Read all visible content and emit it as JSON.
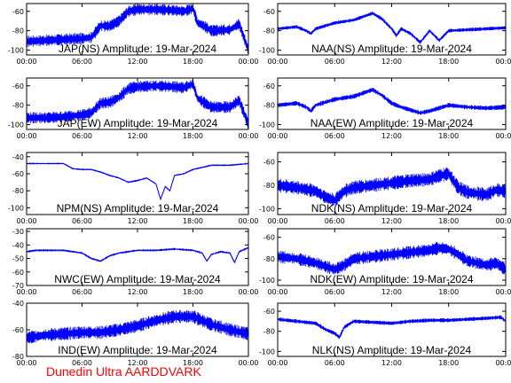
{
  "colors": {
    "trace": "#0000ff",
    "frame": "#000000",
    "footer": "#ff0000",
    "background": "#ffffff"
  },
  "footer": {
    "text": "Dunedin Ultra AARDDVARK"
  },
  "chart_data": [
    {
      "type": "line",
      "title": "JAP(NS) Amplitude: 19-Mar-2024",
      "xlim": [
        0,
        24
      ],
      "xticks": [
        "00:00",
        "06:00",
        "12:00",
        "18:00",
        "00:00"
      ],
      "ylim": [
        -105,
        -52
      ],
      "yticks": [
        -100,
        -80,
        -60
      ],
      "series": [
        {
          "x": [
            0,
            2,
            4,
            6,
            7,
            8,
            9,
            10,
            11,
            12,
            14,
            16,
            17,
            18,
            18.5,
            19,
            20,
            22,
            23,
            24
          ],
          "y": [
            -91,
            -90,
            -89,
            -88,
            -87,
            -75,
            -75,
            -70,
            -60,
            -58,
            -58,
            -59,
            -60,
            -57,
            -72,
            -74,
            -80,
            -79,
            -73,
            -100
          ],
          "band": 6
        }
      ]
    },
    {
      "type": "line",
      "title": "NAA(NS) Amplitude: 19-Mar-2024",
      "xlim": [
        0,
        24
      ],
      "xticks": [
        "00:00",
        "06:00",
        "12:00",
        "18:00",
        "00:00"
      ],
      "ylim": [
        -105,
        -52
      ],
      "yticks": [
        -100,
        -80,
        -60
      ],
      "series": [
        {
          "x": [
            0,
            2,
            3,
            3.5,
            4,
            6,
            8,
            10,
            11,
            12,
            12.5,
            13,
            14,
            15,
            16,
            17,
            18,
            20,
            22,
            24
          ],
          "y": [
            -78,
            -76,
            -80,
            -83,
            -78,
            -72,
            -69,
            -62,
            -68,
            -78,
            -85,
            -78,
            -83,
            -92,
            -80,
            -90,
            -80,
            -79,
            -78,
            -77
          ],
          "band": 2
        }
      ]
    },
    {
      "type": "line",
      "title": "JAP(EW) Amplitude: 19-Mar-2024",
      "xlim": [
        0,
        24
      ],
      "xticks": [
        "00:00",
        "06:00",
        "12:00",
        "18:00",
        "00:00"
      ],
      "ylim": [
        -105,
        -52
      ],
      "yticks": [
        -100,
        -80,
        -60
      ],
      "series": [
        {
          "x": [
            0,
            2,
            4,
            6,
            7,
            8,
            9,
            10,
            11,
            12,
            14,
            16,
            17,
            18,
            18.5,
            19,
            20,
            22,
            23,
            24
          ],
          "y": [
            -93,
            -93,
            -92,
            -90,
            -88,
            -78,
            -77,
            -72,
            -63,
            -61,
            -60,
            -61,
            -62,
            -58,
            -73,
            -76,
            -82,
            -82,
            -75,
            -100
          ],
          "band": 6
        }
      ]
    },
    {
      "type": "line",
      "title": "NAA(EW) Amplitude: 19-Mar-2024",
      "xlim": [
        0,
        24
      ],
      "xticks": [
        "00:00",
        "06:00",
        "12:00",
        "18:00",
        "00:00"
      ],
      "ylim": [
        -105,
        -52
      ],
      "yticks": [
        -100,
        -80,
        -60
      ],
      "series": [
        {
          "x": [
            0,
            2,
            3,
            3.5,
            4,
            6,
            8,
            10,
            11,
            12,
            13,
            14,
            15,
            16,
            18,
            20,
            22,
            24
          ],
          "y": [
            -80,
            -78,
            -82,
            -86,
            -80,
            -74,
            -71,
            -64,
            -70,
            -78,
            -82,
            -85,
            -88,
            -86,
            -80,
            -82,
            -83,
            -82
          ],
          "band": 2.5
        }
      ]
    },
    {
      "type": "line",
      "title": "NPM(NS) Amplitude: 19-Mar-2024",
      "xlim": [
        0,
        24
      ],
      "xticks": [
        "00:00",
        "06:00",
        "12:00",
        "18:00",
        "00:00"
      ],
      "ylim": [
        -108,
        -35
      ],
      "yticks": [
        -100,
        -80,
        -60,
        -40
      ],
      "series": [
        {
          "x": [
            0,
            2,
            4,
            5,
            6,
            7,
            8,
            9,
            10,
            11,
            12,
            13,
            14,
            14.5,
            15,
            15.5,
            16,
            17,
            18,
            20,
            22,
            24
          ],
          "y": [
            -48,
            -48,
            -48,
            -54,
            -55,
            -55,
            -58,
            -62,
            -65,
            -70,
            -68,
            -65,
            -72,
            -90,
            -75,
            -80,
            -62,
            -60,
            -55,
            -50,
            -50,
            -48
          ],
          "band": 1
        }
      ]
    },
    {
      "type": "line",
      "title": "NDK(NS) Amplitude: 19-Mar-2024",
      "xlim": [
        0,
        24
      ],
      "xticks": [
        "00:00",
        "06:00",
        "12:00",
        "18:00",
        "00:00"
      ],
      "ylim": [
        -105,
        -52
      ],
      "yticks": [
        -100,
        -80,
        -60
      ],
      "series": [
        {
          "x": [
            0,
            2,
            4,
            5,
            6,
            7,
            8,
            10,
            12,
            14,
            16,
            17,
            18,
            18.5,
            19,
            20,
            22,
            23,
            24
          ],
          "y": [
            -80,
            -82,
            -85,
            -90,
            -93,
            -85,
            -82,
            -80,
            -78,
            -76,
            -75,
            -72,
            -70,
            -76,
            -82,
            -86,
            -88,
            -84,
            -85
          ],
          "band": 6
        }
      ]
    },
    {
      "type": "line",
      "title": "NWC(EW) Amplitude: 19-Mar-2024",
      "xlim": [
        0,
        24
      ],
      "xticks": [
        "00:00",
        "06:00",
        "12:00",
        "18:00",
        "00:00"
      ],
      "ylim": [
        -70,
        -28
      ],
      "yticks": [
        -70,
        -60,
        -50,
        -40,
        -30
      ],
      "series": [
        {
          "x": [
            0,
            1,
            2,
            4,
            6,
            7,
            8,
            9,
            10,
            12,
            14,
            16,
            18,
            19,
            19.5,
            20,
            21,
            22,
            22.5,
            23,
            24
          ],
          "y": [
            -45,
            -44,
            -44,
            -44,
            -46,
            -50,
            -52,
            -48,
            -46,
            -44,
            -44,
            -43,
            -44,
            -46,
            -52,
            -47,
            -45,
            -46,
            -53,
            -45,
            -42
          ],
          "band": 0.8
        }
      ]
    },
    {
      "type": "line",
      "title": "NDK(EW) Amplitude: 19-Mar-2024",
      "xlim": [
        0,
        24
      ],
      "xticks": [
        "00:00",
        "06:00",
        "12:00",
        "18:00",
        "00:00"
      ],
      "ylim": [
        -105,
        -52
      ],
      "yticks": [
        -100,
        -80,
        -60
      ],
      "series": [
        {
          "x": [
            0,
            2,
            4,
            6,
            7,
            8,
            10,
            12,
            14,
            16,
            17,
            18,
            19,
            20,
            22,
            23,
            24
          ],
          "y": [
            -78,
            -80,
            -84,
            -90,
            -86,
            -80,
            -78,
            -76,
            -74,
            -72,
            -70,
            -71,
            -76,
            -82,
            -86,
            -84,
            -90
          ],
          "band": 6
        }
      ]
    },
    {
      "type": "line",
      "title": "IND(EW) Amplitude: 19-Mar-2024",
      "xlim": [
        0,
        24
      ],
      "xticks": [
        "00:00",
        "06:00",
        "12:00",
        "18:00",
        "00:00"
      ],
      "ylim": [
        -80,
        -40
      ],
      "yticks": [
        -80,
        -60,
        -40
      ],
      "series": [
        {
          "x": [
            0,
            2,
            4,
            6,
            8,
            10,
            12,
            14,
            16,
            18,
            19,
            20,
            22,
            24
          ],
          "y": [
            -66,
            -64,
            -63,
            -62,
            -62,
            -60,
            -57,
            -53,
            -50,
            -50,
            -53,
            -56,
            -60,
            -63
          ],
          "band": 5
        }
      ]
    },
    {
      "type": "line",
      "title": "NLK(NS) Amplitude: 19-Mar-2024",
      "xlim": [
        0,
        24
      ],
      "xticks": [
        "00:00",
        "06:00",
        "12:00",
        "18:00",
        "00:00"
      ],
      "ylim": [
        -105,
        -52
      ],
      "yticks": [
        -100,
        -80,
        -60
      ],
      "series": [
        {
          "x": [
            0,
            2,
            4,
            5,
            6,
            6.5,
            7,
            8,
            10,
            12,
            14,
            16,
            18,
            20,
            22,
            23.5,
            24
          ],
          "y": [
            -68,
            -70,
            -72,
            -78,
            -82,
            -86,
            -76,
            -70,
            -71,
            -72,
            -70,
            -69,
            -69,
            -68,
            -67,
            -66,
            -70
          ],
          "band": 2
        }
      ]
    }
  ]
}
